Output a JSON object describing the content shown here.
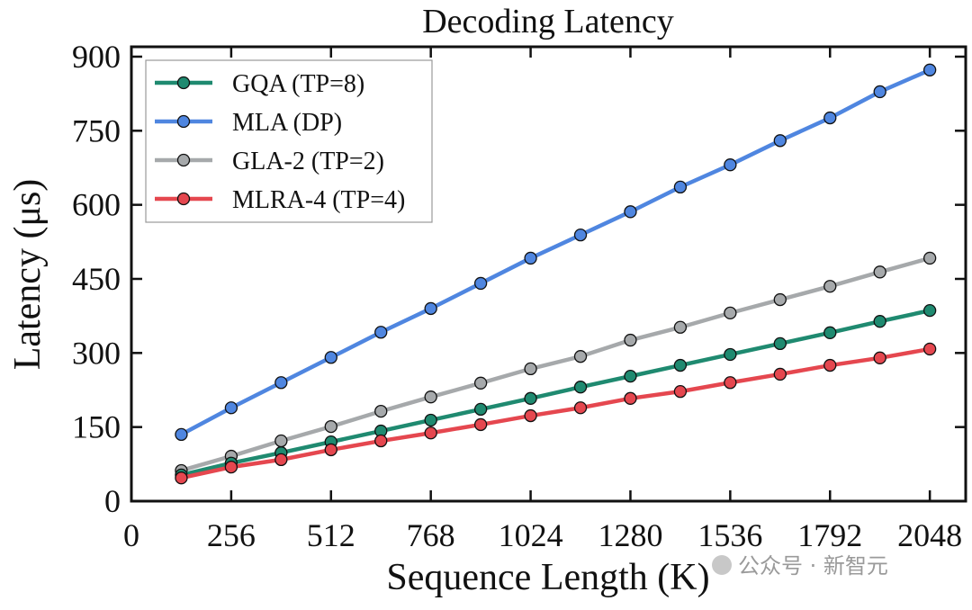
{
  "chart_data": {
    "type": "line",
    "title": "Decoding Latency",
    "xlabel": "Sequence Length (K)",
    "ylabel": "Latency (μs)",
    "xlim": [
      0,
      2140
    ],
    "ylim": [
      0,
      920
    ],
    "xticks": [
      0,
      256,
      512,
      768,
      1024,
      1280,
      1536,
      1792,
      2048
    ],
    "yticks": [
      0,
      150,
      300,
      450,
      600,
      750,
      900
    ],
    "grid": false,
    "legend_position": "top-left",
    "x": [
      128,
      256,
      384,
      512,
      640,
      768,
      896,
      1024,
      1152,
      1280,
      1408,
      1536,
      1664,
      1792,
      1920,
      2048
    ],
    "series": [
      {
        "name": "GQA (TP=8)",
        "color": "#1f8a70",
        "values": [
          53,
          77,
          98,
          120,
          142,
          164,
          186,
          208,
          231,
          253,
          275,
          297,
          319,
          341,
          364,
          386
        ]
      },
      {
        "name": "MLA (DP)",
        "color": "#4f86e0",
        "values": [
          135,
          189,
          240,
          291,
          342,
          390,
          441,
          492,
          539,
          586,
          636,
          681,
          730,
          776,
          829,
          873
        ]
      },
      {
        "name": "GLA-2 (TP=2)",
        "color": "#a6a9ab",
        "values": [
          62,
          91,
          122,
          151,
          182,
          211,
          239,
          268,
          293,
          326,
          352,
          381,
          408,
          435,
          464,
          492
        ]
      },
      {
        "name": "MLRA-4 (TP=4)",
        "color": "#e5474f",
        "values": [
          47,
          69,
          84,
          104,
          122,
          138,
          155,
          173,
          189,
          208,
          222,
          240,
          257,
          275,
          290,
          308
        ]
      }
    ]
  },
  "watermark": "公众号 · 新智元"
}
